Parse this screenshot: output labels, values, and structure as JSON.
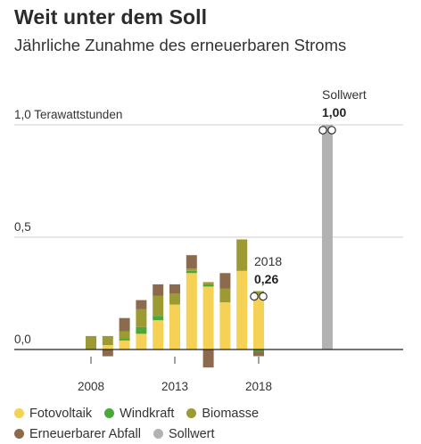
{
  "title": "Weit unter dem Soll",
  "subtitle": "Jährliche Zunahme des erneuerbaren Stroms",
  "colors": {
    "Fotovoltaik": "#f5d155",
    "Windkraft": "#4aa83a",
    "Biomasse": "#9c9a32",
    "Erneuerbarer Abfall": "#8c6a4e",
    "Sollwert": "#b2b2b2"
  },
  "legend": {
    "row1": [
      "Fotovoltaik",
      "Windkraft",
      "Biomasse"
    ],
    "row2": [
      "Erneuerbarer Abfall",
      "Sollwert"
    ]
  },
  "annotations": {
    "target_label": "Sollwert",
    "target_value": "1,00",
    "last_year": "2018",
    "last_value": "0,26"
  },
  "chart_data": {
    "type": "bar",
    "stacked": true,
    "title": "Weit unter dem Soll",
    "subtitle": "Jährliche Zunahme des erneuerbaren Stroms",
    "ylabel": "Terawattstunden",
    "ylim": [
      -0.08,
      1.0
    ],
    "yticks": [
      {
        "value": 0.0,
        "label": "0,0"
      },
      {
        "value": 0.5,
        "label": "0,5"
      },
      {
        "value": 1.0,
        "label": "1,0 Terawattstunden"
      }
    ],
    "xticks": [
      2008,
      2013,
      2018
    ],
    "categories": [
      2008,
      2009,
      2010,
      2011,
      2012,
      2013,
      2014,
      2015,
      2016,
      2017,
      2018,
      "Sollwert"
    ],
    "series": [
      {
        "name": "Fotovoltaik",
        "values": [
          0.0,
          0.02,
          0.04,
          0.07,
          0.13,
          0.2,
          0.34,
          0.28,
          0.21,
          0.35,
          0.24,
          0
        ]
      },
      {
        "name": "Windkraft",
        "values": [
          0.0,
          0.0,
          0.01,
          0.03,
          0.02,
          0.0,
          0.01,
          0.01,
          0.0,
          0.0,
          -0.01,
          0
        ]
      },
      {
        "name": "Biomasse",
        "values": [
          0.06,
          0.04,
          0.03,
          0.08,
          0.09,
          0.05,
          0.01,
          0.01,
          0.06,
          0.14,
          0.02,
          0
        ]
      },
      {
        "name": "Erneuerbarer Abfall",
        "values": [
          0.0,
          -0.03,
          0.06,
          0.04,
          0.05,
          0.04,
          0.06,
          -0.08,
          0.07,
          0.0,
          -0.02,
          0
        ]
      },
      {
        "name": "Sollwert",
        "values": [
          0,
          0,
          0,
          0,
          0,
          0,
          0,
          0,
          0,
          0,
          0,
          1.0
        ]
      }
    ],
    "grid": true,
    "legend_position": "bottom"
  }
}
